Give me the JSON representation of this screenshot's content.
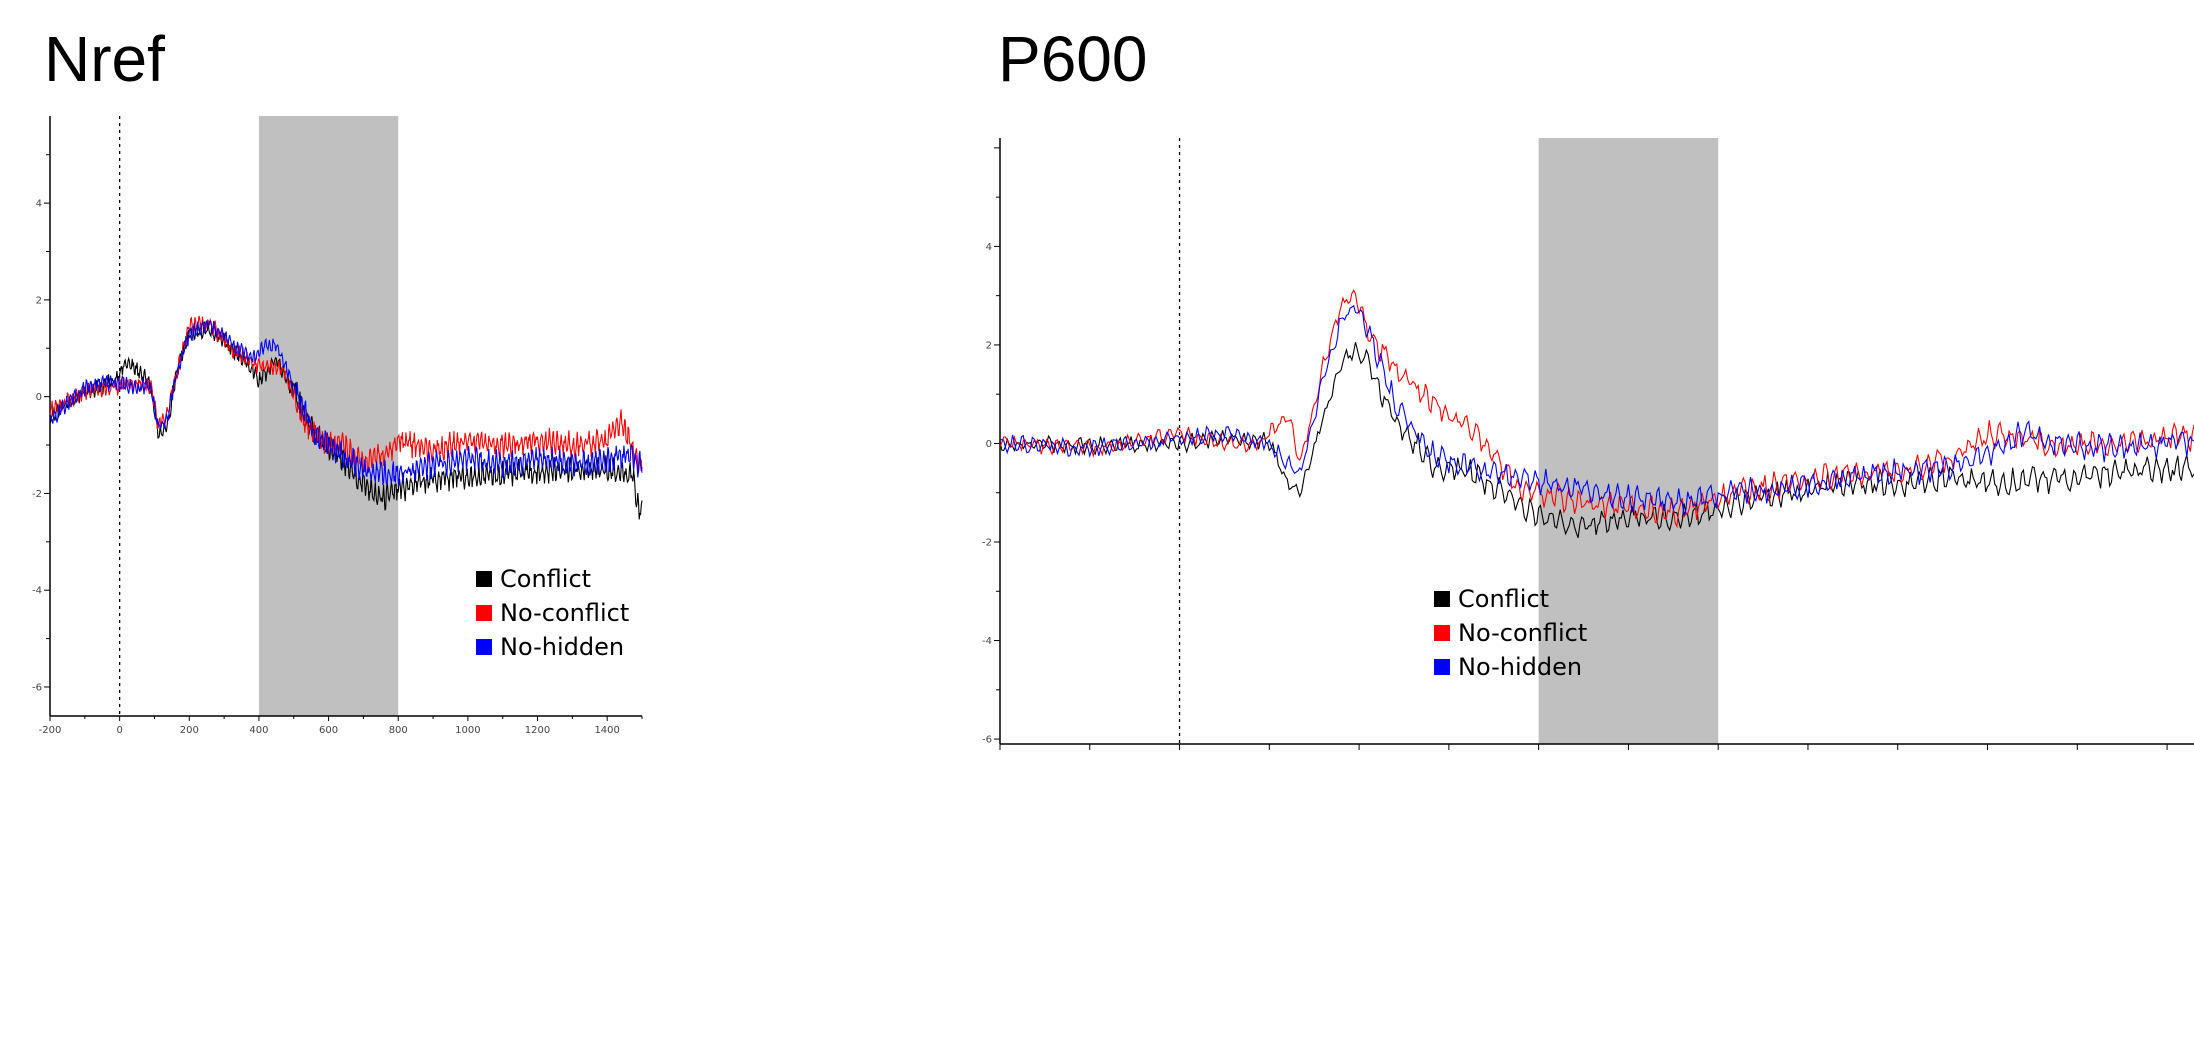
{
  "charts": [
    {
      "id": "left",
      "title": "Nref",
      "chart_data": {
        "type": "line",
        "title": "Nref",
        "xlabel": "",
        "ylabel": "",
        "xlim": [
          -200,
          1500
        ],
        "ylim": [
          -6.6,
          5.8
        ],
        "xticks": [
          -200,
          0,
          200,
          400,
          600,
          800,
          1000,
          1200,
          1400
        ],
        "yticks": [
          4,
          2,
          0,
          -2,
          -4,
          -6
        ],
        "grid": false,
        "onset_marker": 0,
        "shaded_window": [
          400,
          800
        ],
        "legend_position": "bottom-right",
        "series": [
          {
            "name": "Conflict",
            "color": "#000000",
            "points": [
              [
                -200,
                -0.4
              ],
              [
                -100,
                0.1
              ],
              [
                -20,
                0.3
              ],
              [
                20,
                0.7
              ],
              [
                60,
                0.5
              ],
              [
                90,
                0.2
              ],
              [
                110,
                -0.8
              ],
              [
                135,
                -0.7
              ],
              [
                160,
                0.4
              ],
              [
                200,
                1.3
              ],
              [
                260,
                1.4
              ],
              [
                320,
                1.0
              ],
              [
                380,
                0.6
              ],
              [
                400,
                0.3
              ],
              [
                450,
                0.8
              ],
              [
                500,
                0.1
              ],
              [
                560,
                -0.8
              ],
              [
                640,
                -1.3
              ],
              [
                700,
                -1.8
              ],
              [
                760,
                -2.1
              ],
              [
                800,
                -1.9
              ],
              [
                900,
                -1.7
              ],
              [
                1000,
                -1.65
              ],
              [
                1100,
                -1.6
              ],
              [
                1200,
                -1.55
              ],
              [
                1300,
                -1.5
              ],
              [
                1400,
                -1.5
              ],
              [
                1470,
                -1.6
              ],
              [
                1490,
                -2.3
              ]
            ]
          },
          {
            "name": "No-conflict",
            "color": "#ff0000",
            "points": [
              [
                -200,
                -0.3
              ],
              [
                -100,
                0.1
              ],
              [
                -20,
                0.2
              ],
              [
                40,
                0.3
              ],
              [
                90,
                0.2
              ],
              [
                110,
                -0.6
              ],
              [
                135,
                -0.4
              ],
              [
                160,
                0.4
              ],
              [
                200,
                1.5
              ],
              [
                260,
                1.5
              ],
              [
                320,
                1.0
              ],
              [
                380,
                0.7
              ],
              [
                420,
                0.6
              ],
              [
                470,
                0.6
              ],
              [
                520,
                -0.4
              ],
              [
                580,
                -0.9
              ],
              [
                640,
                -1.0
              ],
              [
                700,
                -1.4
              ],
              [
                760,
                -1.2
              ],
              [
                800,
                -0.9
              ],
              [
                900,
                -1.1
              ],
              [
                1000,
                -0.9
              ],
              [
                1100,
                -1.0
              ],
              [
                1200,
                -0.9
              ],
              [
                1300,
                -1.0
              ],
              [
                1400,
                -0.9
              ],
              [
                1440,
                -0.5
              ],
              [
                1470,
                -1.0
              ],
              [
                1490,
                -1.4
              ]
            ]
          },
          {
            "name": "No-hidden",
            "color": "#0000ff",
            "points": [
              [
                -200,
                -0.5
              ],
              [
                -100,
                0.2
              ],
              [
                -20,
                0.3
              ],
              [
                40,
                0.2
              ],
              [
                90,
                0.2
              ],
              [
                110,
                -0.6
              ],
              [
                135,
                -0.5
              ],
              [
                160,
                0.4
              ],
              [
                200,
                1.3
              ],
              [
                260,
                1.5
              ],
              [
                320,
                1.1
              ],
              [
                380,
                0.8
              ],
              [
                410,
                1.0
              ],
              [
                450,
                1.1
              ],
              [
                500,
                0.2
              ],
              [
                560,
                -0.8
              ],
              [
                640,
                -1.2
              ],
              [
                700,
                -1.5
              ],
              [
                760,
                -1.6
              ],
              [
                800,
                -1.6
              ],
              [
                900,
                -1.4
              ],
              [
                1000,
                -1.3
              ],
              [
                1100,
                -1.4
              ],
              [
                1200,
                -1.3
              ],
              [
                1300,
                -1.4
              ],
              [
                1400,
                -1.3
              ],
              [
                1470,
                -1.2
              ],
              [
                1490,
                -1.4
              ]
            ]
          }
        ]
      }
    },
    {
      "id": "right",
      "title": "P600",
      "chart_data": {
        "type": "line",
        "title": "P600",
        "xlabel": "",
        "ylabel": "",
        "xlim": [
          -200,
          1130
        ],
        "ylim": [
          -6.1,
          6.2
        ],
        "xticks": [
          -200,
          -100,
          0,
          100,
          200,
          300,
          400,
          500,
          600,
          700,
          800,
          900,
          1000,
          1100
        ],
        "yticks": [
          4,
          2,
          0,
          -2,
          -4,
          -6
        ],
        "grid": false,
        "onset_marker": 0,
        "shaded_window": [
          400,
          600
        ],
        "legend_position": "bottom-right",
        "series": [
          {
            "name": "Conflict",
            "color": "#000000",
            "points": [
              [
                -200,
                0.0
              ],
              [
                -100,
                -0.05
              ],
              [
                0,
                0.0
              ],
              [
                50,
                0.1
              ],
              [
                100,
                0.05
              ],
              [
                120,
                -0.8
              ],
              [
                135,
                -1.0
              ],
              [
                160,
                0.5
              ],
              [
                180,
                1.6
              ],
              [
                195,
                1.9
              ],
              [
                210,
                1.6
              ],
              [
                240,
                0.5
              ],
              [
                280,
                -0.4
              ],
              [
                330,
                -0.6
              ],
              [
                380,
                -1.3
              ],
              [
                440,
                -1.7
              ],
              [
                500,
                -1.5
              ],
              [
                560,
                -1.5
              ],
              [
                620,
                -1.2
              ],
              [
                680,
                -1.0
              ],
              [
                740,
                -0.8
              ],
              [
                800,
                -0.8
              ],
              [
                860,
                -0.7
              ],
              [
                920,
                -0.8
              ],
              [
                980,
                -0.7
              ],
              [
                1040,
                -0.6
              ],
              [
                1100,
                -0.5
              ]
            ]
          },
          {
            "name": "No-conflict",
            "color": "#ff0000",
            "points": [
              [
                -200,
                0.0
              ],
              [
                -100,
                -0.1
              ],
              [
                0,
                0.2
              ],
              [
                50,
                0.0
              ],
              [
                90,
                0.0
              ],
              [
                120,
                0.6
              ],
              [
                135,
                -0.4
              ],
              [
                160,
                1.6
              ],
              [
                180,
                2.8
              ],
              [
                195,
                3.0
              ],
              [
                210,
                2.3
              ],
              [
                240,
                1.5
              ],
              [
                280,
                0.9
              ],
              [
                330,
                0.2
              ],
              [
                380,
                -0.9
              ],
              [
                440,
                -1.2
              ],
              [
                500,
                -1.3
              ],
              [
                560,
                -1.4
              ],
              [
                620,
                -1.0
              ],
              [
                680,
                -0.8
              ],
              [
                740,
                -0.6
              ],
              [
                800,
                -0.6
              ],
              [
                860,
                -0.3
              ],
              [
                900,
                0.2
              ],
              [
                940,
                0.1
              ],
              [
                980,
                -0.1
              ],
              [
                1040,
                0.0
              ],
              [
                1100,
                0.1
              ]
            ]
          },
          {
            "name": "No-hidden",
            "color": "#0000ff",
            "points": [
              [
                -200,
                0.0
              ],
              [
                -100,
                -0.1
              ],
              [
                0,
                0.1
              ],
              [
                50,
                0.2
              ],
              [
                100,
                0.0
              ],
              [
                120,
                -0.4
              ],
              [
                135,
                -0.6
              ],
              [
                160,
                1.3
              ],
              [
                180,
                2.5
              ],
              [
                195,
                2.8
              ],
              [
                210,
                2.3
              ],
              [
                240,
                0.8
              ],
              [
                280,
                -0.2
              ],
              [
                330,
                -0.5
              ],
              [
                380,
                -0.7
              ],
              [
                440,
                -0.9
              ],
              [
                500,
                -1.1
              ],
              [
                560,
                -1.2
              ],
              [
                620,
                -1.0
              ],
              [
                680,
                -0.9
              ],
              [
                740,
                -0.7
              ],
              [
                800,
                -0.6
              ],
              [
                860,
                -0.5
              ],
              [
                900,
                -0.2
              ],
              [
                940,
                0.2
              ],
              [
                980,
                0.0
              ],
              [
                1040,
                -0.1
              ],
              [
                1100,
                0.0
              ]
            ]
          }
        ]
      }
    }
  ]
}
